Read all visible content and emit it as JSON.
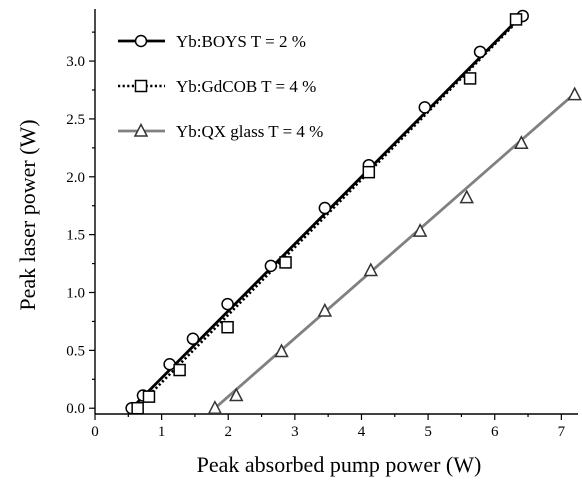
{
  "chart_data": {
    "type": "line",
    "xlabel": "Peak absorbed pump power (W)",
    "ylabel": "Peak laser power (W)",
    "xlim": [
      0,
      7.25
    ],
    "ylim": [
      -0.05,
      3.45
    ],
    "x_ticks": [
      0,
      1,
      2,
      3,
      4,
      5,
      6,
      7
    ],
    "y_ticks": [
      0.0,
      0.5,
      1.0,
      1.5,
      2.0,
      2.5,
      3.0
    ],
    "x_tick_labels": [
      "0",
      "1",
      "2",
      "3",
      "4",
      "5",
      "6",
      "7"
    ],
    "y_tick_labels": [
      "0.0",
      "0.5",
      "1.0",
      "1.5",
      "2.0",
      "2.5",
      "3.0"
    ],
    "grid": false,
    "legend_position": "top-left",
    "series": [
      {
        "name": "Yb:BOYS T = 2 %",
        "marker": "circle",
        "line_style": "solid",
        "line_color": "#000000",
        "points": [
          {
            "x": 0.55,
            "y": 0.0
          },
          {
            "x": 0.72,
            "y": 0.11
          },
          {
            "x": 1.12,
            "y": 0.38
          },
          {
            "x": 1.47,
            "y": 0.6
          },
          {
            "x": 1.99,
            "y": 0.9
          },
          {
            "x": 2.64,
            "y": 1.23
          },
          {
            "x": 3.45,
            "y": 1.73
          },
          {
            "x": 4.11,
            "y": 2.1
          },
          {
            "x": 4.95,
            "y": 2.6
          },
          {
            "x": 5.78,
            "y": 3.08
          },
          {
            "x": 6.42,
            "y": 3.39
          }
        ],
        "fit": [
          {
            "x": 0.55,
            "y": 0.0
          },
          {
            "x": 6.45,
            "y": 3.42
          }
        ]
      },
      {
        "name": "Yb:GdCOB T = 4 %",
        "marker": "square",
        "line_style": "dotted",
        "line_color": "#000000",
        "points": [
          {
            "x": 0.64,
            "y": 0.0
          },
          {
            "x": 0.81,
            "y": 0.1
          },
          {
            "x": 1.27,
            "y": 0.33
          },
          {
            "x": 1.99,
            "y": 0.7
          },
          {
            "x": 2.86,
            "y": 1.26
          },
          {
            "x": 4.11,
            "y": 2.04
          },
          {
            "x": 5.63,
            "y": 2.85
          },
          {
            "x": 6.32,
            "y": 3.36
          }
        ],
        "fit": [
          {
            "x": 0.62,
            "y": 0.0
          },
          {
            "x": 6.35,
            "y": 3.35
          }
        ]
      },
      {
        "name": "Yb:QX glass  T = 4 %",
        "marker": "triangle",
        "line_style": "solid",
        "line_color": "#808080",
        "points": [
          {
            "x": 1.8,
            "y": 0.0
          },
          {
            "x": 2.12,
            "y": 0.11
          },
          {
            "x": 2.8,
            "y": 0.49
          },
          {
            "x": 3.45,
            "y": 0.84
          },
          {
            "x": 4.14,
            "y": 1.19
          },
          {
            "x": 4.88,
            "y": 1.53
          },
          {
            "x": 5.58,
            "y": 1.82
          },
          {
            "x": 6.4,
            "y": 2.29
          },
          {
            "x": 7.2,
            "y": 2.71
          }
        ],
        "fit": [
          {
            "x": 1.8,
            "y": 0.0
          },
          {
            "x": 7.22,
            "y": 2.73
          }
        ]
      }
    ]
  }
}
